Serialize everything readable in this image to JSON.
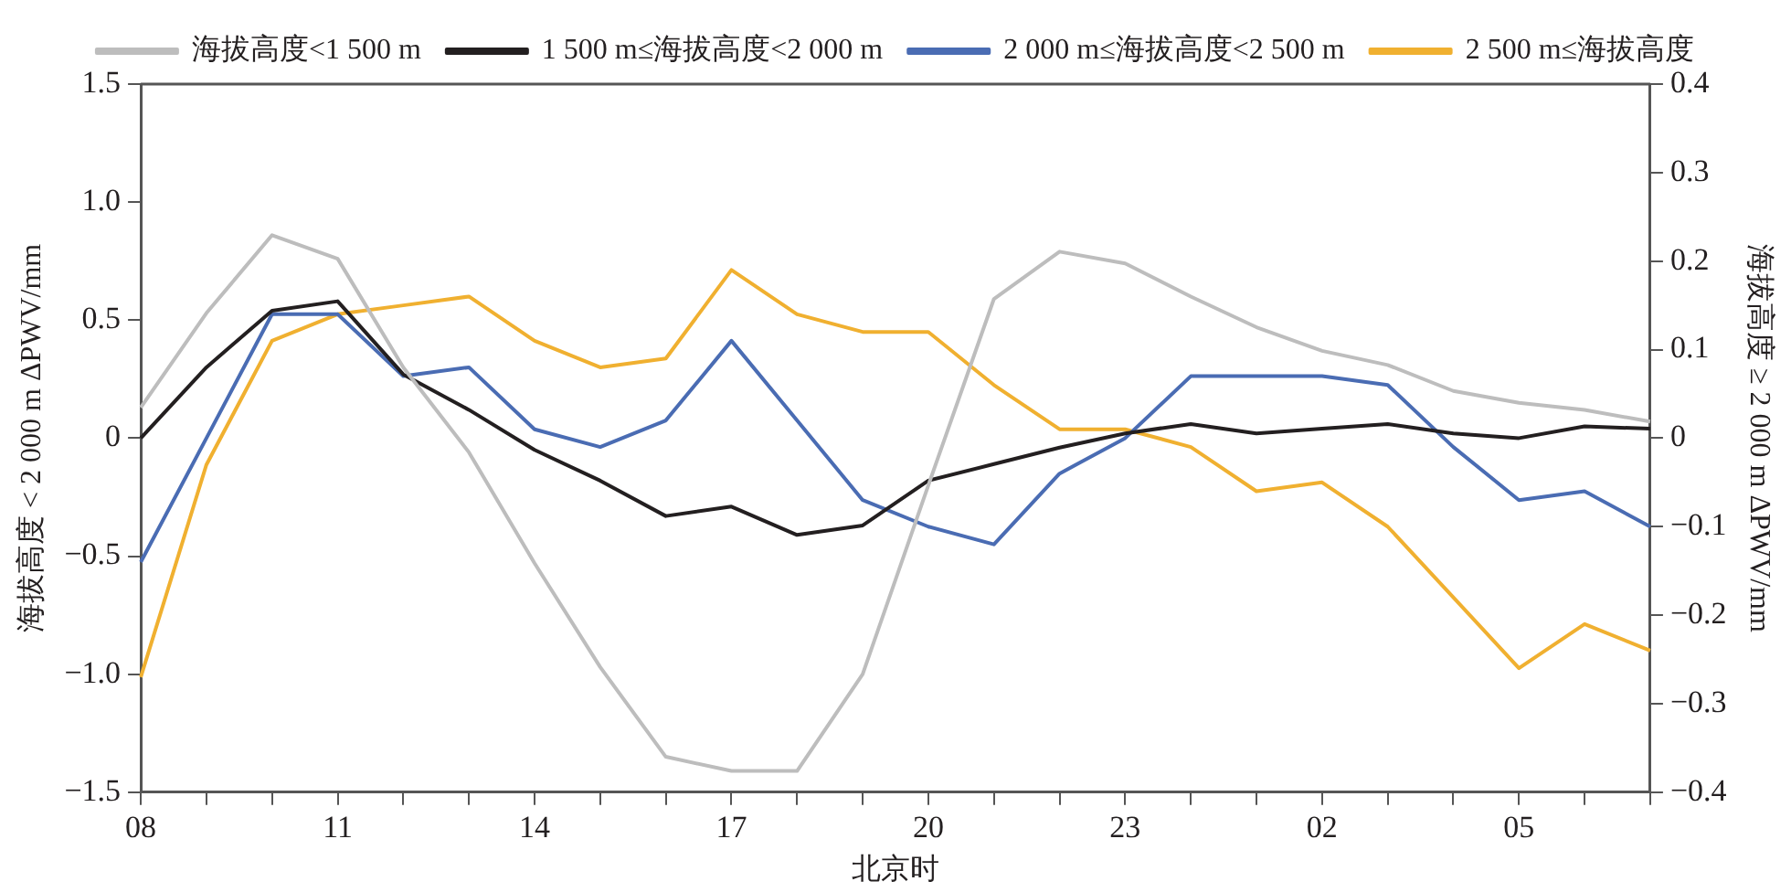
{
  "chart_data": {
    "type": "line",
    "xlabel": "北京时",
    "ylabel": "海拔高度 < 2 000 m ΔPWV/mm",
    "y2label": "海拔高度 ≥ 2 000 m ΔPWV/mm",
    "categories": [
      "08",
      null,
      null,
      "11",
      null,
      null,
      "14",
      null,
      null,
      "17",
      null,
      null,
      "20",
      null,
      null,
      "23",
      null,
      null,
      "02",
      null,
      null,
      "05",
      null,
      null
    ],
    "ylim": [
      -1.5,
      1.5
    ],
    "yticks": [
      {
        "value": -1.5,
        "label": "−1.5"
      },
      {
        "value": -1,
        "label": "−1.0"
      },
      {
        "value": -0.5,
        "label": "−0.5"
      },
      {
        "value": 0,
        "label": "0"
      },
      {
        "value": 0.5,
        "label": "0.5"
      },
      {
        "value": 1,
        "label": "1.0"
      },
      {
        "value": 1.5,
        "label": "1.5"
      }
    ],
    "y2lim": [
      -0.4,
      0.4
    ],
    "y2ticks": [
      {
        "value": -0.4,
        "label": "−0.4"
      },
      {
        "value": -0.3,
        "label": "−0.3"
      },
      {
        "value": -0.2,
        "label": "−0.2"
      },
      {
        "value": -0.1,
        "label": "−0.1"
      },
      0,
      0.1,
      0.2,
      0.3,
      0.4
    ],
    "grid": false,
    "legend": "top",
    "marker": "none",
    "line_style": "solid",
    "series": [
      {
        "name": "海拔高度<1 500 m",
        "color": "#bdbdbd",
        "values": [
          0.13,
          0.53,
          0.86,
          0.76,
          0.3,
          -0.06,
          -0.53,
          -0.97,
          -1.35,
          -1.41,
          -1.41,
          -1.0,
          -0.2,
          0.59,
          0.79,
          0.74,
          0.6,
          0.47,
          0.37,
          0.31,
          0.2,
          0.15,
          0.12,
          0.07
        ]
      },
      {
        "name": "1 500 m≤海拔高度<2 000 m",
        "color": "#231f20",
        "values": [
          0.0,
          0.3,
          0.54,
          0.58,
          0.27,
          0.12,
          -0.05,
          -0.18,
          -0.33,
          -0.29,
          -0.41,
          -0.37,
          -0.18,
          -0.11,
          -0.04,
          0.02,
          0.06,
          0.02,
          0.04,
          0.06,
          0.02,
          0.0,
          0.05,
          0.04
        ]
      },
      {
        "name": "2 000 m≤海拔高度<2 500 m",
        "color": "#4a6cb3",
        "axis": "y2",
        "values": [
          -0.14,
          0.0,
          0.14,
          0.14,
          0.07,
          0.08,
          0.01,
          -0.01,
          0.02,
          0.11,
          0.02,
          -0.07,
          -0.1,
          -0.12,
          -0.04,
          0.0,
          0.07,
          0.07,
          0.07,
          0.06,
          -0.01,
          -0.07,
          -0.06,
          -0.1
        ]
      },
      {
        "name": "2 500 m≤海拔高度",
        "color": "#f0b030",
        "axis": "y2",
        "values": [
          -0.27,
          -0.03,
          0.11,
          0.14,
          0.15,
          0.16,
          0.11,
          0.08,
          0.09,
          0.19,
          0.14,
          0.12,
          0.12,
          0.06,
          0.01,
          0.01,
          -0.01,
          -0.06,
          -0.05,
          -0.1,
          -0.18,
          -0.26,
          -0.21,
          -0.24
        ]
      }
    ]
  }
}
